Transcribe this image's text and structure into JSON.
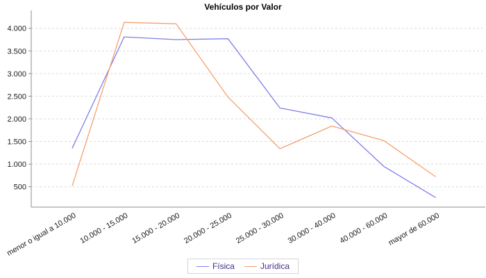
{
  "chart_data": {
    "type": "line",
    "title": "Vehículos por Valor",
    "categories": [
      "menor o igual a 10.000",
      "10.000 - 15.000",
      "15.000 - 20.000",
      "20.000 - 25.000",
      "25.000 - 30.000",
      "30.000 - 40.000",
      "40.000 - 60.000",
      "mayor de 60.000"
    ],
    "series": [
      {
        "name": "Física",
        "color": "#7e7eeb",
        "values": [
          1350,
          3810,
          3750,
          3770,
          2240,
          2020,
          950,
          260
        ]
      },
      {
        "name": "Jurídica",
        "color": "#f79f6f",
        "values": [
          520,
          4130,
          4100,
          2480,
          1340,
          1840,
          1520,
          720
        ]
      }
    ],
    "y_ticks": [
      500,
      1000,
      1500,
      2000,
      2500,
      3000,
      3500,
      4000
    ],
    "y_tick_labels": [
      "500",
      "1.000",
      "1.500",
      "2.000",
      "2.500",
      "3.000",
      "3.500",
      "4.000"
    ],
    "ylim": [
      0,
      4250
    ],
    "xlabel": "",
    "ylabel": "",
    "grid": "horizontal-dashed",
    "legend_position": "bottom"
  },
  "colors": {
    "axis": "#8c8c8c",
    "grid": "#dbdbdb",
    "tick_label": "#1a1a1a",
    "legend_text": "#432c85",
    "legend_border": "#d6d6d6"
  }
}
